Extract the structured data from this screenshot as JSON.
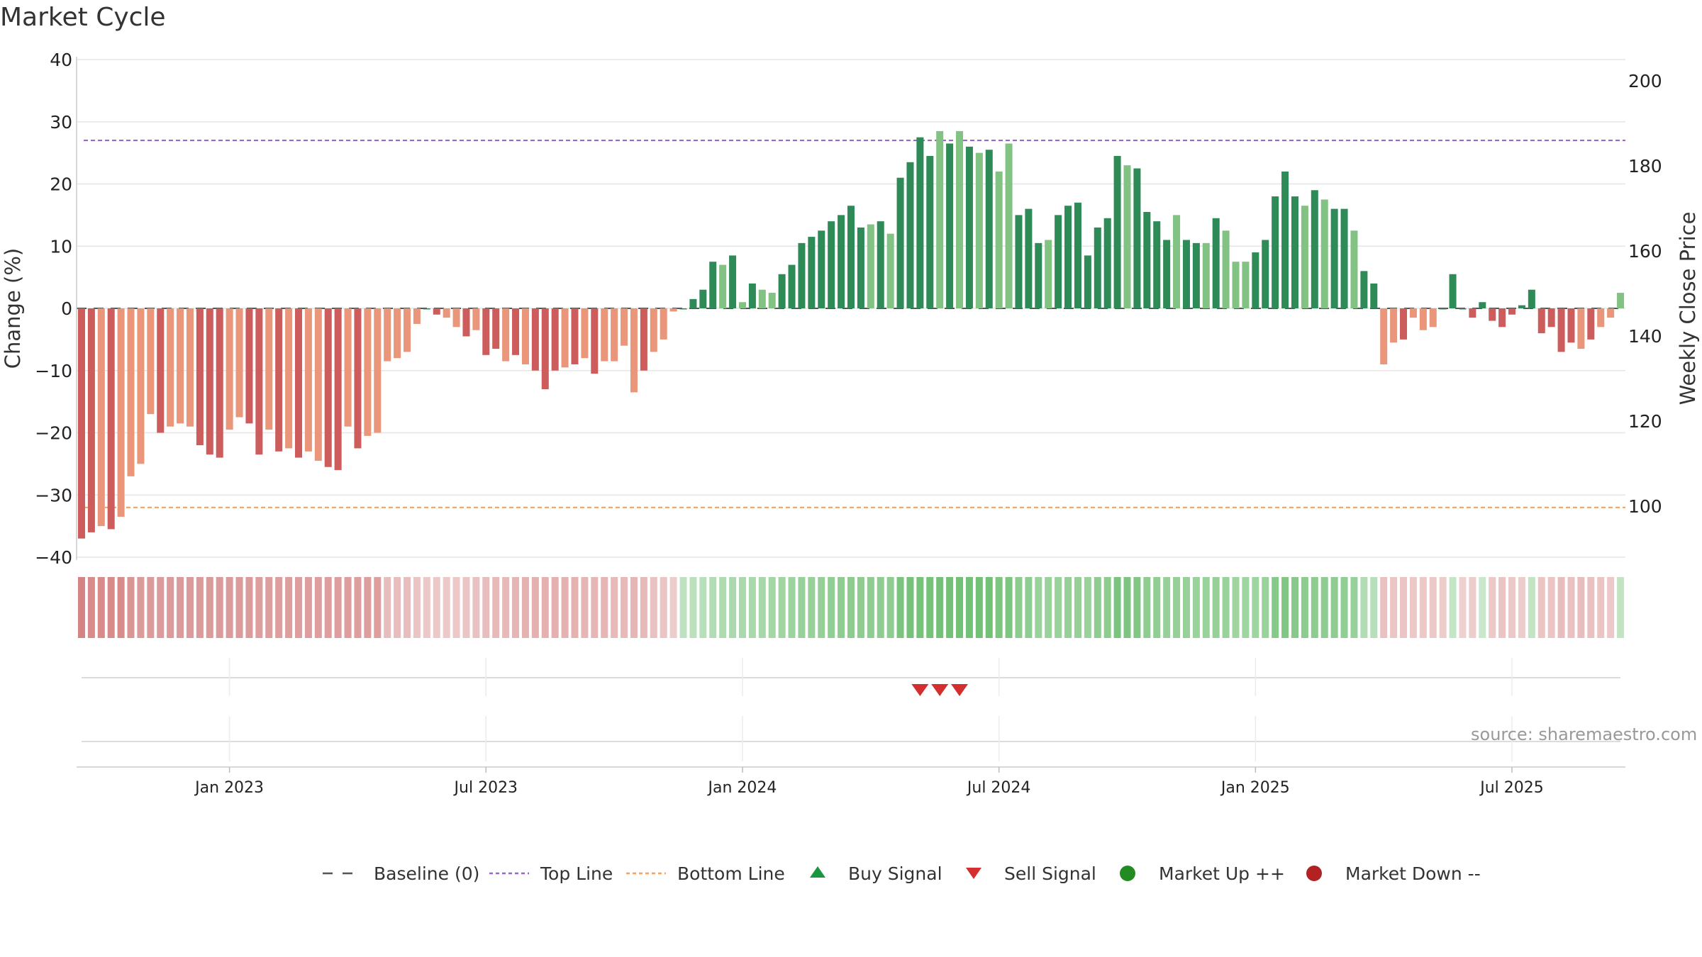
{
  "chart_data": {
    "type": "bar",
    "title": "Market Cycle",
    "ylabel": "Change (%)",
    "y2label": "Weekly Close Price",
    "ylim": [
      -40,
      40
    ],
    "y2lim": [
      88,
      205
    ],
    "y_ticks": [
      "40",
      "30",
      "20",
      "10",
      "0",
      "−10",
      "−20",
      "−30",
      "−40"
    ],
    "y2_ticks": [
      "200",
      "180",
      "160",
      "140",
      "120",
      "100"
    ],
    "x_ticks": [
      {
        "label": "Jan 2023",
        "idx": 15
      },
      {
        "label": "Jul 2023",
        "idx": 41
      },
      {
        "label": "Jan 2024",
        "idx": 67
      },
      {
        "label": "Jul 2024",
        "idx": 93
      },
      {
        "label": "Jan 2025",
        "idx": 119
      },
      {
        "label": "Jul 2025",
        "idx": 145
      }
    ],
    "top_line": 27,
    "bottom_line": -32,
    "baseline": 0,
    "source": "source: sharemaestro.com",
    "colors": {
      "strong_up": "#2e8b57",
      "weak_up": "#82c282",
      "strong_down": "#cd5c5c",
      "weak_down": "#e9967a",
      "top_line": "#9966cc",
      "bottom_line": "#f4a460",
      "baseline": "#555555",
      "sell_signal": "#d32f2f",
      "buy_signal": "#1a9641",
      "market_up": "#228b22",
      "market_down": "#b22222"
    },
    "series": [
      {
        "name": "Change (%)",
        "values": [
          -37,
          -36,
          -35,
          -35.5,
          -33.5,
          -27,
          -25,
          -17,
          -20,
          -19,
          -18.5,
          -19,
          -22,
          -23.5,
          -24,
          -19.5,
          -17.5,
          -18.5,
          -23.5,
          -19.5,
          -23,
          -22.5,
          -24,
          -23,
          -24.5,
          -25.5,
          -26,
          -19,
          -22.5,
          -20.5,
          -20,
          -8.5,
          -8,
          -7,
          -2.5,
          0,
          -1,
          -1.5,
          -3,
          -4.5,
          -3.5,
          -7.5,
          -6.5,
          -8.5,
          -7.5,
          -9,
          -10,
          -13,
          -10,
          -9.5,
          -9,
          -8,
          -10.5,
          -8.5,
          -8.5,
          -6,
          -13.5,
          -10,
          -7,
          -5,
          -0.5,
          0,
          1.5,
          3,
          7.5,
          7,
          8.5,
          1,
          4,
          3,
          2.5,
          5.5,
          7,
          10.5,
          11.5,
          12.5,
          14,
          15,
          16.5,
          13,
          13.5,
          14,
          12,
          21,
          23.5,
          27.5,
          24.5,
          28.5,
          26.5,
          28.5,
          26,
          25,
          25.5,
          22,
          26.5,
          15,
          16,
          10.5,
          11,
          15,
          16.5,
          17,
          8.5,
          13,
          14.5,
          24.5,
          23,
          22.5,
          15.5,
          14,
          11,
          15,
          11,
          10.5,
          10.5,
          14.5,
          12.5,
          7.5,
          7.5,
          9,
          11,
          18,
          22,
          18,
          16.5,
          19,
          17.5,
          16,
          16,
          12.5,
          6,
          4,
          -9,
          -5.5,
          -5,
          -1.5,
          -3.5,
          -3,
          0,
          5.5,
          0,
          -1.5,
          1,
          -2,
          -3,
          -1,
          0.5,
          3,
          -4,
          -3,
          -7,
          -5.5,
          -6.5,
          -5,
          -3,
          -1.5,
          2.5
        ],
        "strength": "SSWSWWWWSWWWSSSWWSSWSWSWWSSWSWWWWWWSSWWSWSSWSWSSSWSWSWWWWSWWWSSSSWSWSWWSSSSSSSSSWSWSSSSWSWSWSWWSSSWSSSSSSSWSSSSWSSWSWWWSSSSSWSWSSWSSWWSWWWSSSSSSSSSSSSSSWSWWWWWWSSW"
      },
      {
        "name": "Weekly Close Price",
        "values": []
      }
    ],
    "cycle_band": [
      -0.55,
      -0.5,
      -0.5,
      -0.5,
      -0.5,
      -0.45,
      -0.42,
      -0.42,
      -0.42,
      -0.42,
      -0.42,
      -0.42,
      -0.42,
      -0.42,
      -0.42,
      -0.42,
      -0.42,
      -0.42,
      -0.4,
      -0.4,
      -0.4,
      -0.4,
      -0.4,
      -0.4,
      -0.4,
      -0.4,
      -0.4,
      -0.4,
      -0.4,
      -0.4,
      -0.4,
      -0.22,
      -0.22,
      -0.22,
      -0.18,
      -0.16,
      -0.16,
      -0.16,
      -0.16,
      -0.18,
      -0.2,
      -0.22,
      -0.24,
      -0.24,
      -0.26,
      -0.28,
      -0.3,
      -0.3,
      -0.3,
      -0.28,
      -0.28,
      -0.26,
      -0.26,
      -0.26,
      -0.24,
      -0.24,
      -0.26,
      -0.24,
      -0.2,
      -0.18,
      -0.14,
      0.22,
      0.24,
      0.26,
      0.3,
      0.32,
      0.34,
      0.34,
      0.35,
      0.36,
      0.38,
      0.4,
      0.42,
      0.45,
      0.45,
      0.46,
      0.48,
      0.5,
      0.52,
      0.5,
      0.5,
      0.5,
      0.5,
      0.62,
      0.64,
      0.65,
      0.65,
      0.66,
      0.66,
      0.66,
      0.66,
      0.66,
      0.66,
      0.6,
      0.6,
      0.52,
      0.5,
      0.44,
      0.44,
      0.44,
      0.46,
      0.46,
      0.44,
      0.5,
      0.52,
      0.62,
      0.6,
      0.58,
      0.5,
      0.48,
      0.45,
      0.46,
      0.45,
      0.44,
      0.44,
      0.46,
      0.44,
      0.4,
      0.4,
      0.4,
      0.44,
      0.55,
      0.58,
      0.55,
      0.52,
      0.52,
      0.5,
      0.5,
      0.48,
      0.45,
      0.3,
      0.26,
      -0.2,
      -0.18,
      -0.18,
      -0.16,
      -0.16,
      -0.16,
      -0.14,
      0.18,
      -0.12,
      -0.14,
      0.16,
      -0.16,
      -0.18,
      -0.16,
      -0.14,
      0.2,
      -0.18,
      -0.18,
      -0.22,
      -0.2,
      -0.22,
      -0.2,
      -0.18,
      -0.16,
      0.2
    ],
    "sell_signals": [
      85,
      87,
      89
    ],
    "buy_signals": [],
    "legend_position": "bottom",
    "legend": [
      "Baseline (0)",
      "Top Line",
      "Bottom Line",
      "Buy Signal",
      "Sell Signal",
      "Market Up ++",
      "Market Down --"
    ],
    "grid": true
  }
}
